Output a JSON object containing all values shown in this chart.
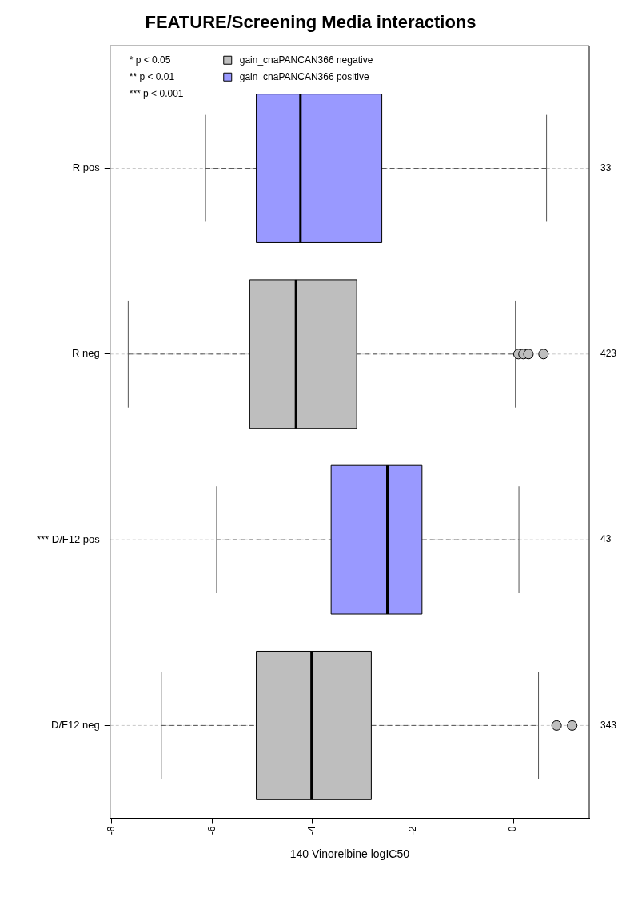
{
  "chart_data": {
    "type": "box",
    "orientation": "horizontal",
    "title": "FEATURE/Screening Media interactions",
    "xlabel": "140 Vinorelbine logIC50",
    "categories": [
      "R pos",
      "R neg",
      "*** D/F12 pos",
      "D/F12 neg"
    ],
    "xlim": [
      -8.03,
      1.51
    ],
    "xticks": [
      -8,
      -6,
      -4,
      -2,
      0
    ],
    "series": [
      {
        "name": "gain_cnaPANCAN366 negative",
        "color": "#bebebe",
        "boxes": [
          null,
          {
            "low": -7.67,
            "q1": -5.25,
            "median": -4.33,
            "q3": -3.12,
            "high": 0.04,
            "outliers": [
              0.1,
              0.2,
              0.3,
              0.6
            ]
          },
          null,
          {
            "low": -7.01,
            "q1": -5.12,
            "median": -4.02,
            "q3": -2.83,
            "high": 0.5,
            "outliers": [
              0.86,
              1.17
            ]
          }
        ]
      },
      {
        "name": "gain_cnaPANCAN366 positive",
        "color": "#9999ff",
        "boxes": [
          {
            "low": -6.13,
            "q1": -5.12,
            "median": -4.24,
            "q3": -2.62,
            "high": 0.66
          },
          null,
          {
            "low": -5.91,
            "q1": -3.63,
            "median": -2.51,
            "q3": -1.82,
            "high": 0.11
          },
          null
        ]
      }
    ],
    "annotations": [
      "* p < 0.05",
      "** p < 0.01",
      "*** p < 0.001",
      "33",
      "423",
      "43",
      "343"
    ],
    "grid": "y",
    "legend": "top"
  }
}
